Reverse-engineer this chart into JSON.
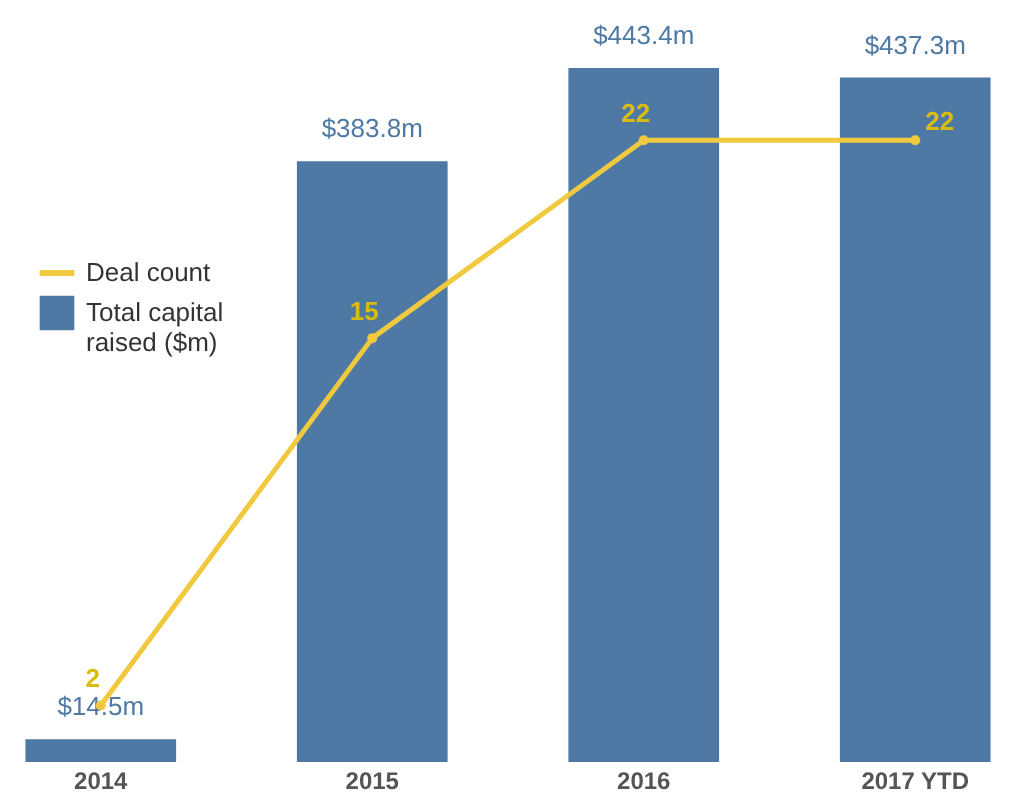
{
  "chart_data": {
    "type": "bar",
    "categories": [
      "2014",
      "2015",
      "2016",
      "2017 YTD"
    ],
    "legend": "left",
    "tick_labels": "x",
    "marker": "circle",
    "grid": false,
    "series": [
      {
        "name": "Deal count",
        "type": "line",
        "axis": "y2",
        "color": "#f0c93e",
        "values": [
          2,
          15,
          22,
          22
        ],
        "value_labels": [
          "2",
          "15",
          "22",
          "22"
        ]
      },
      {
        "name": "Total capital raised ($m)",
        "type": "bar",
        "color": "#4e79a5",
        "values": [
          14.5,
          383.8,
          443.4,
          437.3
        ],
        "value_labels": [
          "$14.5m",
          "$383.8m",
          "$443.4m",
          "$437.3m"
        ]
      }
    ]
  }
}
